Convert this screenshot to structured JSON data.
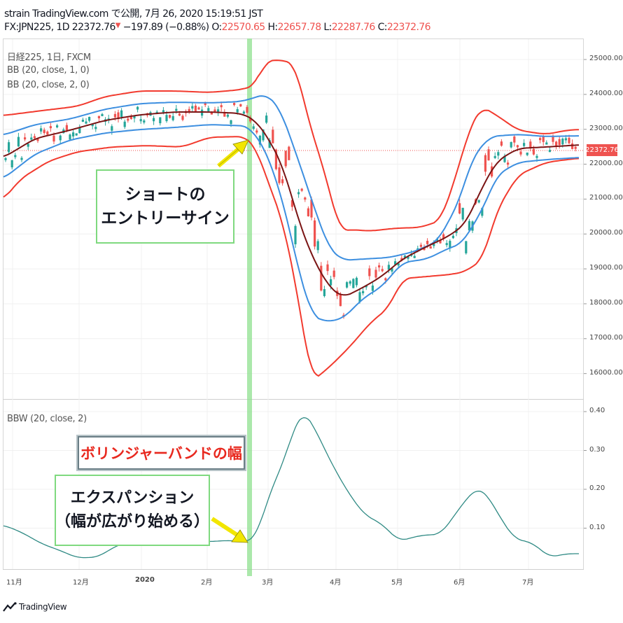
{
  "header": {
    "line1": "strain TradingView.com で公開, 7月 26, 2020 15:19:51 JST",
    "symbol": "FX:JPN225, 1D",
    "last": "22372.76",
    "change": "−197.89 (−0.88%)",
    "o_label": "O:",
    "o_value": "22570.65",
    "h_label": "H:",
    "h_value": "22657.78",
    "l_label": "L:",
    "l_value": "22287.76",
    "c_label": "C:",
    "c_value": "22372.76"
  },
  "legend": {
    "line1": "日経225, 1日, FXCM",
    "line2": "BB (20, close, 1, 0)",
    "line3": "BB (20, close, 2, 0)",
    "bbw": "BBW (20, close, 2)"
  },
  "annotations": {
    "entry_line1": "ショートの",
    "entry_line2": "エントリーサイン",
    "bbw_title": "ボリンジャーバンドの幅",
    "exp_line1": "エクスパンション",
    "exp_line2": "（幅が広がり始める）"
  },
  "price_axis": {
    "ticks": [
      "25000.00",
      "24000.00",
      "23000.00",
      "22000.00",
      "21000.00",
      "20000.00",
      "19000.00",
      "18000.00",
      "17000.00",
      "16000.00"
    ],
    "current_label": "22372.76"
  },
  "bbw_axis": {
    "ticks": [
      "0.40",
      "0.30",
      "0.20",
      "0.10"
    ]
  },
  "time_axis": {
    "ticks": [
      "11月",
      "12月",
      "2020",
      "2月",
      "3月",
      "4月",
      "5月",
      "6月",
      "7月"
    ]
  },
  "footer": {
    "brand": "TradingView"
  },
  "colors": {
    "bb2": "#f23a2e",
    "bb1": "#3d8fe0",
    "basis": "#7a1414",
    "bbw": "#2f8a84",
    "up": "#26a69a",
    "down": "#ef5350",
    "highlight": "#8fe08f"
  },
  "chart_data": [
    {
      "type": "line",
      "x": [
        "11月",
        "12月",
        "2020",
        "2月",
        "3月",
        "4月",
        "5月",
        "6月",
        "7月"
      ],
      "ylim": [
        15500,
        25400
      ],
      "series": [
        {
          "name": "BB (20, close, 2, 0)",
          "values": [
            [
              23350,
              22650
            ],
            [
              23500,
              22950
            ],
            [
              24000,
              22900
            ],
            [
              24000,
              22850
            ],
            [
              24800,
              20600
            ],
            [
              20200,
              15900
            ],
            [
              20300,
              18900
            ],
            [
              23300,
              19800
            ],
            [
              22900,
              22200
            ]
          ]
        },
        {
          "name": "BB (20, close, 1, 0)",
          "values": [
            [
              23000,
              22800
            ],
            [
              23200,
              23000
            ],
            [
              23700,
              23100
            ],
            [
              23700,
              23100
            ],
            [
              23500,
              20800
            ],
            [
              19400,
              17400
            ],
            [
              19900,
              19200
            ],
            [
              22600,
              20600
            ],
            [
              22800,
              22400
            ]
          ]
        },
        {
          "name": "",
          "values": [
            22750,
            23050,
            23450,
            23450,
            22000,
            18400,
            19600,
            21700,
            22600
          ]
        }
      ]
    },
    {
      "type": "line",
      "x": [
        "11月",
        "12月",
        "2020",
        "2月",
        "3月",
        "4月",
        "5月",
        "6月",
        "7月"
      ],
      "ylim": [
        0,
        0.43
      ],
      "series": [
        {
          "name": "BBW (20, close, 2)",
          "values": [
            0.08,
            0.03,
            0.08,
            0.07,
            0.14,
            0.27,
            0.08,
            0.19,
            0.04
          ]
        }
      ]
    }
  ]
}
